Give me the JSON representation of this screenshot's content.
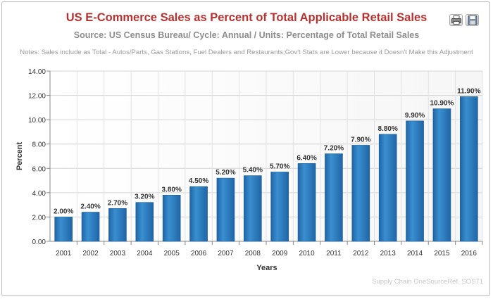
{
  "header": {
    "title": "US E-Commerce Sales as Percent of Total Applicable Retail Sales",
    "subtitle": "Source: US Census Bureau/ Cycle: Annual / Units: Percentage of Total Retail Sales",
    "notes": "Notes: Sales include as Total - Autos/Parts, Gas Stations, Fuel Dealers and Restaurants;Gov't Stats are Lower because it Doesn't Make this Adjustment"
  },
  "credits": "Supply Chain OneSourceRef. SOS71",
  "toolbar": {
    "print_icon": "printer-icon",
    "export_icon": "save-icon"
  },
  "colors": {
    "title": "#b8312f",
    "bar": "#3a8fd0",
    "bar_dark": "#1f65a6"
  },
  "chart_data": {
    "type": "bar",
    "categories": [
      "2001",
      "2002",
      "2003",
      "2004",
      "2005",
      "2006",
      "2007",
      "2008",
      "2009",
      "2010",
      "2011",
      "2012",
      "2013",
      "2014",
      "2015",
      "2016"
    ],
    "values": [
      2.0,
      2.4,
      2.7,
      3.2,
      3.8,
      4.5,
      5.2,
      5.4,
      5.7,
      6.4,
      7.2,
      7.9,
      8.8,
      9.9,
      10.9,
      11.9
    ],
    "data_labels": [
      "2.00%",
      "2.40%",
      "2.70%",
      "3.20%",
      "3.80%",
      "4.50%",
      "5.20%",
      "5.40%",
      "5.70%",
      "6.40%",
      "7.20%",
      "7.90%",
      "8.80%",
      "9.90%",
      "10.90%",
      "11.90%"
    ],
    "xlabel": "Years",
    "ylabel": "Percent",
    "ylim": [
      0,
      14
    ],
    "yticks": [
      "0.00",
      "2.00",
      "4.00",
      "6.00",
      "8.00",
      "10.00",
      "12.00",
      "14.00"
    ],
    "grid": true,
    "legend": "none"
  }
}
